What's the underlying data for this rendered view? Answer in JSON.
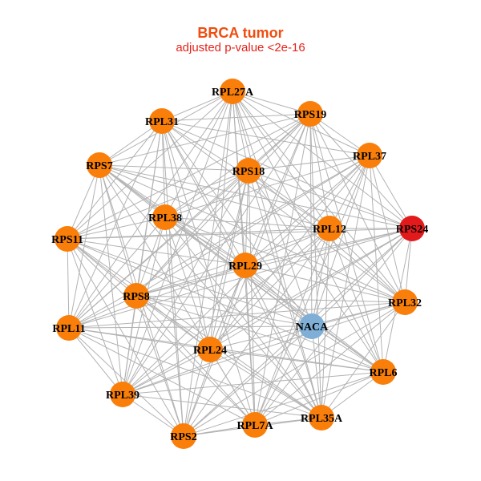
{
  "title": "BRCA tumor",
  "subtitle": "adjusted p-value <2e-16",
  "colors": {
    "title": "#f04d0e",
    "subtitle": "#e5231b",
    "default_node": "#f97f0a",
    "highlight_node": "#e31a1c",
    "query_node": "#7fafd6",
    "edge": "#b3b3b3"
  },
  "nodes": [
    {
      "id": "RPL27A",
      "color": "default"
    },
    {
      "id": "RPL31",
      "color": "default"
    },
    {
      "id": "RPS19",
      "color": "default"
    },
    {
      "id": "RPS7",
      "color": "default"
    },
    {
      "id": "RPL37",
      "color": "default"
    },
    {
      "id": "RPS18",
      "color": "default"
    },
    {
      "id": "RPL38",
      "color": "default"
    },
    {
      "id": "RPL12",
      "color": "default"
    },
    {
      "id": "RPS24",
      "color": "highlight"
    },
    {
      "id": "RPS11",
      "color": "default"
    },
    {
      "id": "RPL29",
      "color": "default"
    },
    {
      "id": "RPS8",
      "color": "default"
    },
    {
      "id": "RPL32",
      "color": "default"
    },
    {
      "id": "RPL11",
      "color": "default"
    },
    {
      "id": "NACA",
      "color": "query"
    },
    {
      "id": "RPL24",
      "color": "default"
    },
    {
      "id": "RPL6",
      "color": "default"
    },
    {
      "id": "RPL39",
      "color": "default"
    },
    {
      "id": "RPL35A",
      "color": "default"
    },
    {
      "id": "RPL7A",
      "color": "default"
    },
    {
      "id": "RPS2",
      "color": "default"
    }
  ]
}
